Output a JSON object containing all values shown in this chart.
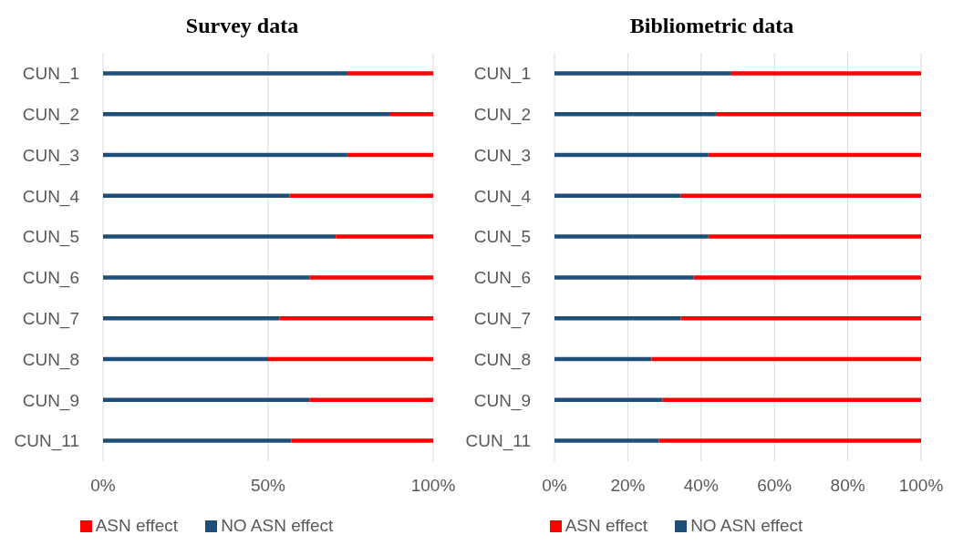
{
  "chart_data": [
    {
      "type": "bar",
      "title": "Survey data",
      "orientation": "horizontal",
      "stacked": true,
      "categories": [
        "CUN_1",
        "CUN_2",
        "CUN_3",
        "CUN_4",
        "CUN_5",
        "CUN_6",
        "CUN_7",
        "CUN_8",
        "CUN_9",
        "CUN_11"
      ],
      "series": [
        {
          "name": "NO ASN effect",
          "color": "#1f4e79",
          "values": [
            74,
            87,
            74,
            56.5,
            70.5,
            62.5,
            53.5,
            50,
            62.5,
            57
          ]
        },
        {
          "name": "ASN effect",
          "color": "#ff0000",
          "values": [
            26,
            13,
            26,
            43.5,
            29.5,
            37.5,
            46.5,
            50,
            37.5,
            43
          ]
        }
      ],
      "xlim": [
        0,
        100
      ],
      "xticks": [
        {
          "value": 0,
          "label": "0%"
        },
        {
          "value": 50,
          "label": "50%"
        },
        {
          "value": 100,
          "label": "100%"
        }
      ],
      "grid": "x",
      "legend": "bottom"
    },
    {
      "type": "bar",
      "title": "Bibliometric data",
      "orientation": "horizontal",
      "stacked": true,
      "categories": [
        "CUN_1",
        "CUN_2",
        "CUN_3",
        "CUN_4",
        "CUN_5",
        "CUN_6",
        "CUN_7",
        "CUN_8",
        "CUN_9",
        "CUN_11"
      ],
      "series": [
        {
          "name": "NO ASN effect",
          "color": "#1f4e79",
          "values": [
            48,
            44,
            42,
            34.5,
            42,
            38,
            34.5,
            26.5,
            29.5,
            28.5
          ]
        },
        {
          "name": "ASN effect",
          "color": "#ff0000",
          "values": [
            52,
            56,
            58,
            65.5,
            58,
            62,
            65.5,
            73.5,
            70.5,
            71.5
          ]
        }
      ],
      "xlim": [
        0,
        100
      ],
      "xticks": [
        {
          "value": 0,
          "label": "0%"
        },
        {
          "value": 20,
          "label": "20%"
        },
        {
          "value": 40,
          "label": "40%"
        },
        {
          "value": 60,
          "label": "60%"
        },
        {
          "value": 80,
          "label": "80%"
        },
        {
          "value": 100,
          "label": "100%"
        }
      ],
      "grid": "x",
      "legend": "bottom"
    }
  ]
}
